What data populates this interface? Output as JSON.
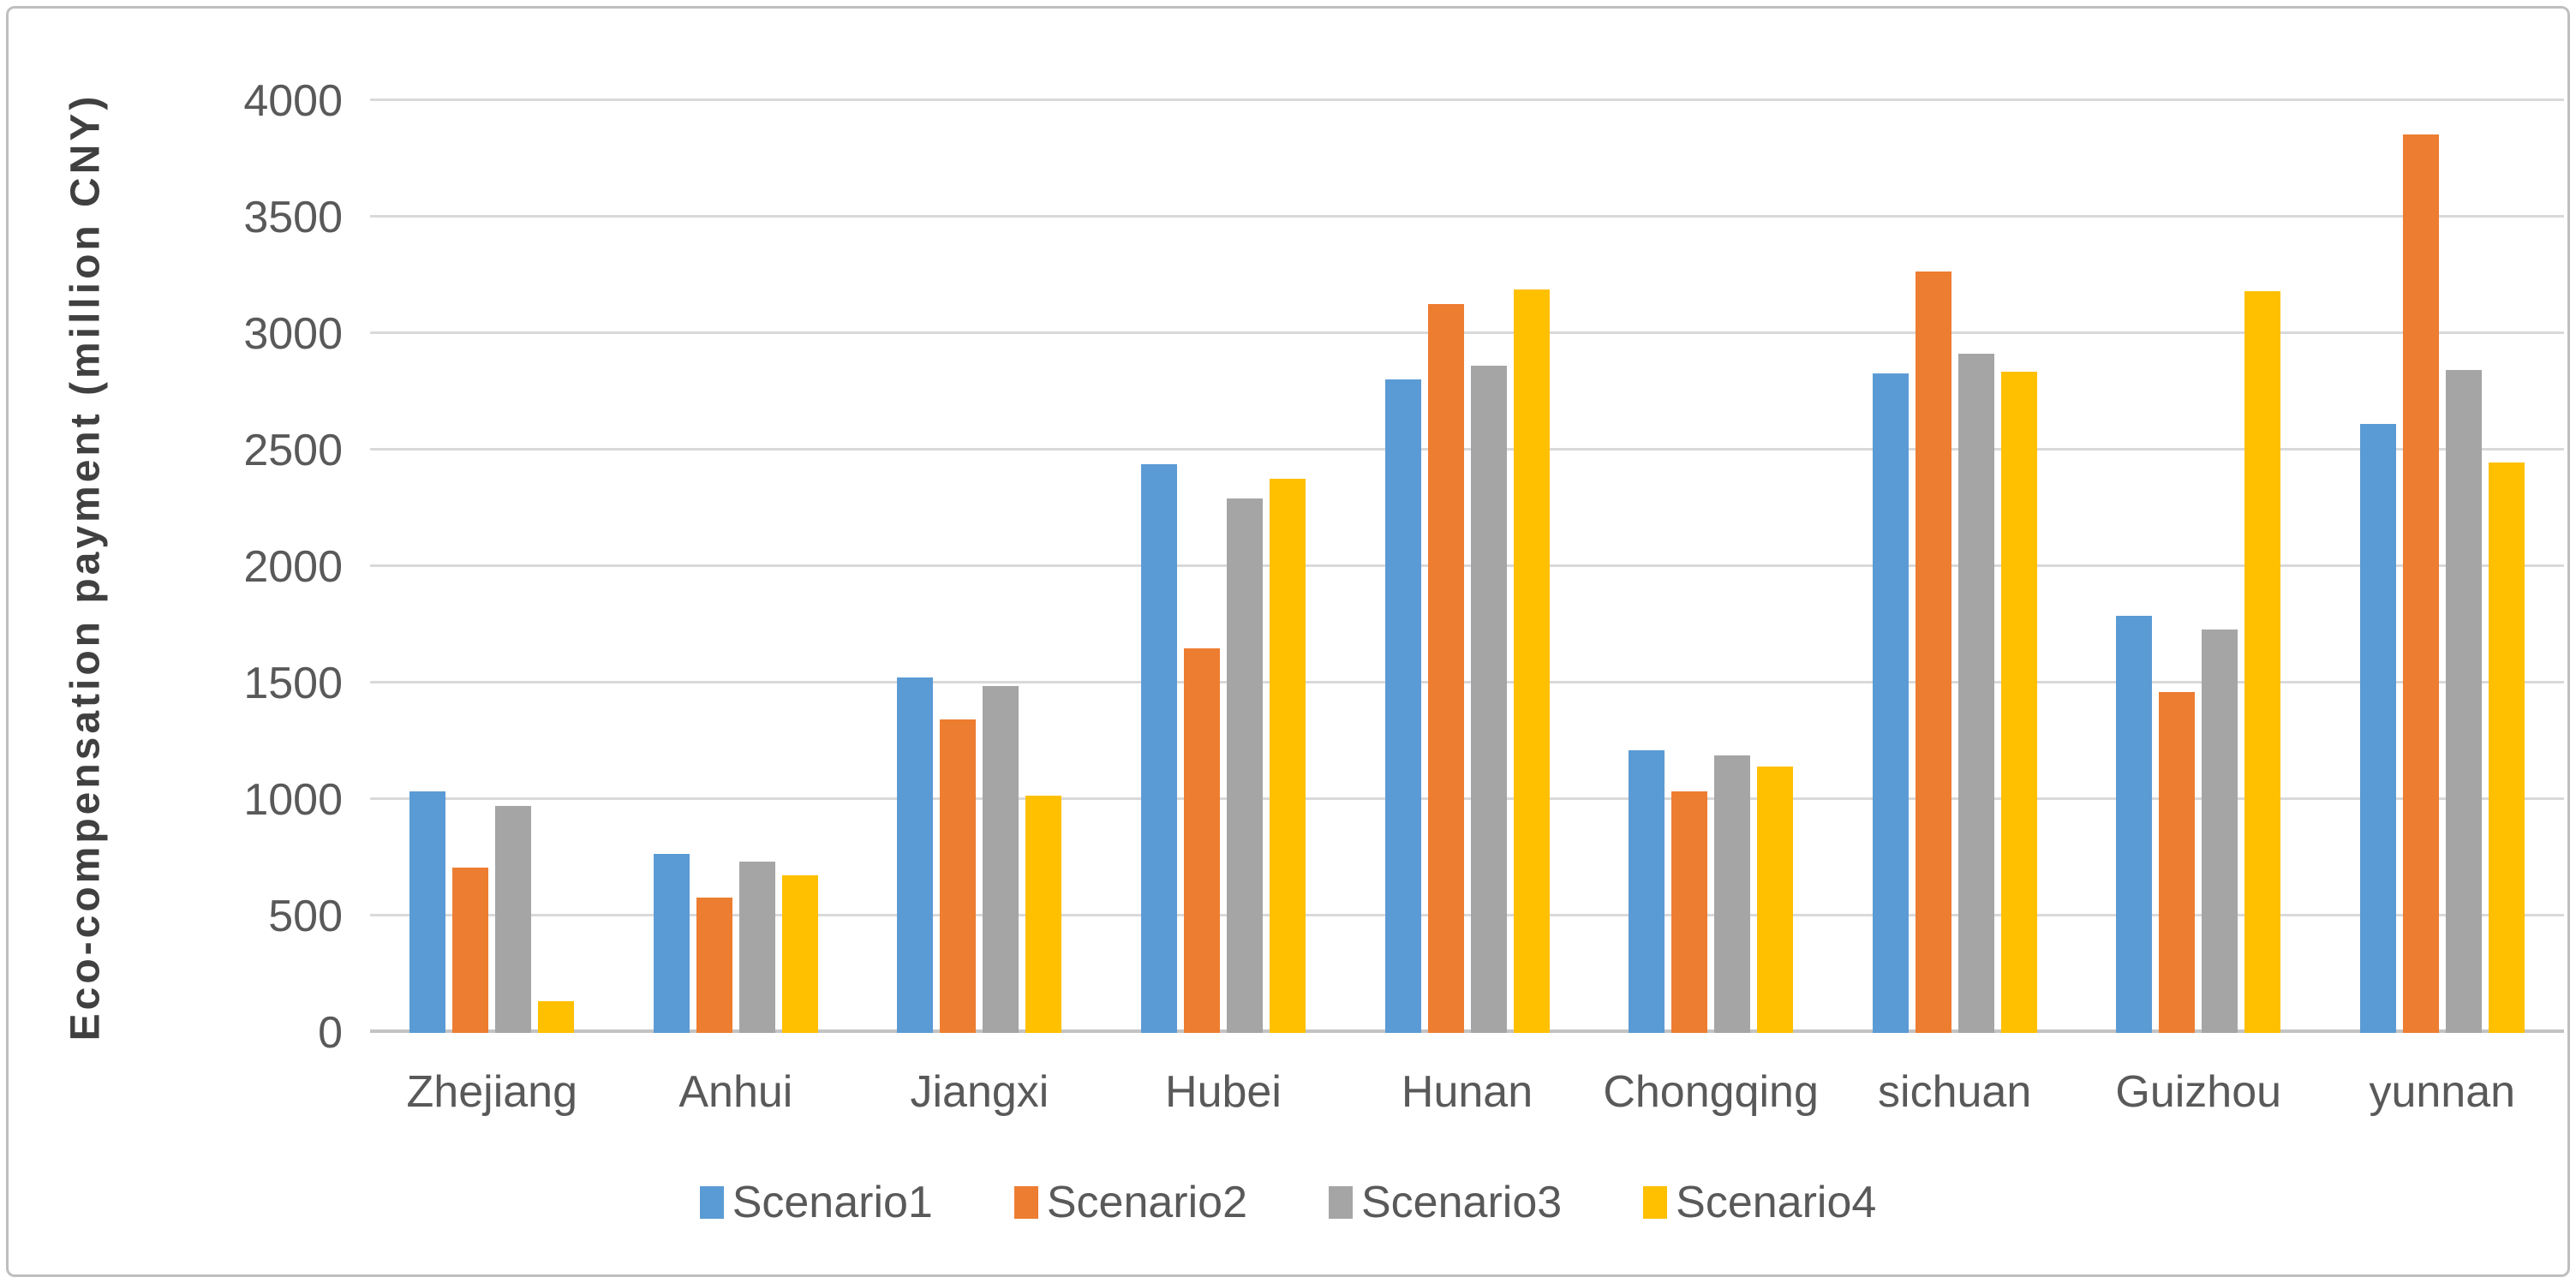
{
  "figure": {
    "background": "#ffffff",
    "border_color": "#bfbfbf"
  },
  "chart_data": {
    "type": "bar",
    "title": "",
    "xlabel": "",
    "ylabel": "Eco-compensation payment (million CNY)",
    "ylim": [
      0,
      4000
    ],
    "ytick_interval": 500,
    "yticks": [
      0,
      500,
      1000,
      1500,
      2000,
      2500,
      3000,
      3500,
      4000
    ],
    "grid": true,
    "gridline_color": "#d9d9d9",
    "zero_line_color": "#c3c3c3",
    "axis_text_color": "#595959",
    "axis_title_color": "#404040",
    "legend_position": "bottom-center",
    "categories": [
      "Zhejiang",
      "Anhui",
      "Jiangxi",
      "Hubei",
      "Hunan",
      "Chongqing",
      "sichuan",
      "Guizhou",
      "yunnan"
    ],
    "series": [
      {
        "name": "Scenario1",
        "color": "#5B9BD5",
        "values": [
          1035,
          770,
          1525,
          2440,
          2805,
          1215,
          2830,
          1790,
          2615
        ]
      },
      {
        "name": "Scenario2",
        "color": "#ED7D31",
        "values": [
          710,
          580,
          1345,
          1650,
          3130,
          1035,
          3270,
          1465,
          3855
        ]
      },
      {
        "name": "Scenario3",
        "color": "#A5A5A5",
        "values": [
          975,
          735,
          1490,
          2295,
          2865,
          1190,
          2915,
          1730,
          2845
        ]
      },
      {
        "name": "Scenario4",
        "color": "#FFC000",
        "values": [
          135,
          675,
          1020,
          2380,
          3190,
          1145,
          2840,
          3185,
          2450
        ]
      }
    ]
  }
}
